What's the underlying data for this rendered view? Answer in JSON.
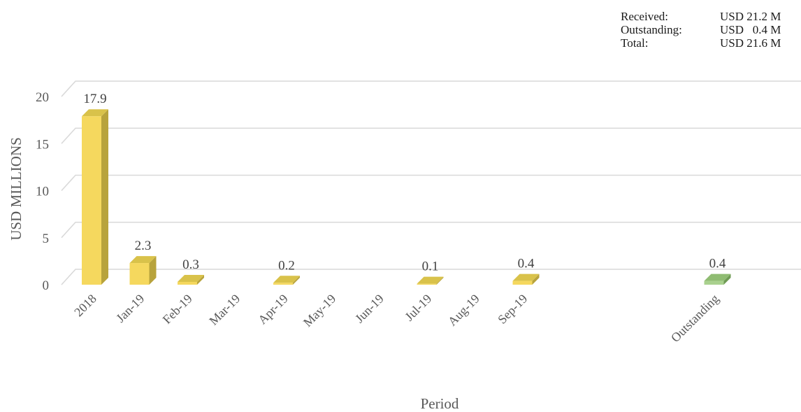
{
  "summary": [
    {
      "label": "Received:",
      "value": "USD 21.2 M"
    },
    {
      "label": "Outstanding:",
      "value": "USD   0.4 M"
    },
    {
      "label": "Total:",
      "value": "USD 21.6 M"
    }
  ],
  "chart_data": {
    "type": "bar",
    "title": "",
    "xlabel": "Period",
    "ylabel": "USD MILLIONS",
    "ylim": [
      0,
      20
    ],
    "yticks": [
      0,
      5,
      10,
      15,
      20
    ],
    "grid": true,
    "categories": [
      "2018",
      "Jan-19",
      "Feb-19",
      "Mar-19",
      "Apr-19",
      "May-19",
      "Jun-19",
      "Jul-19",
      "Aug-19",
      "Sep-19",
      "",
      "",
      "",
      "Outstanding"
    ],
    "series": [
      {
        "values": [
          17.9,
          2.3,
          0.3,
          null,
          0.2,
          null,
          null,
          0.1,
          null,
          0.4,
          null,
          null,
          null,
          0.4
        ],
        "data_labels": [
          "17.9",
          "2.3",
          "0.3",
          "",
          "0.2",
          "",
          "",
          "0.1",
          "",
          "0.4",
          "",
          "",
          "",
          "0.4"
        ]
      }
    ],
    "colors": {
      "received_front": "#F5D85E",
      "received_side": "#B8A33C",
      "received_top": "#D9C24A",
      "outstanding_front": "#A9D18E",
      "outstanding_side": "#6F9B55",
      "outstanding_top": "#8FBC72",
      "grid": "#D9D9D9"
    }
  }
}
